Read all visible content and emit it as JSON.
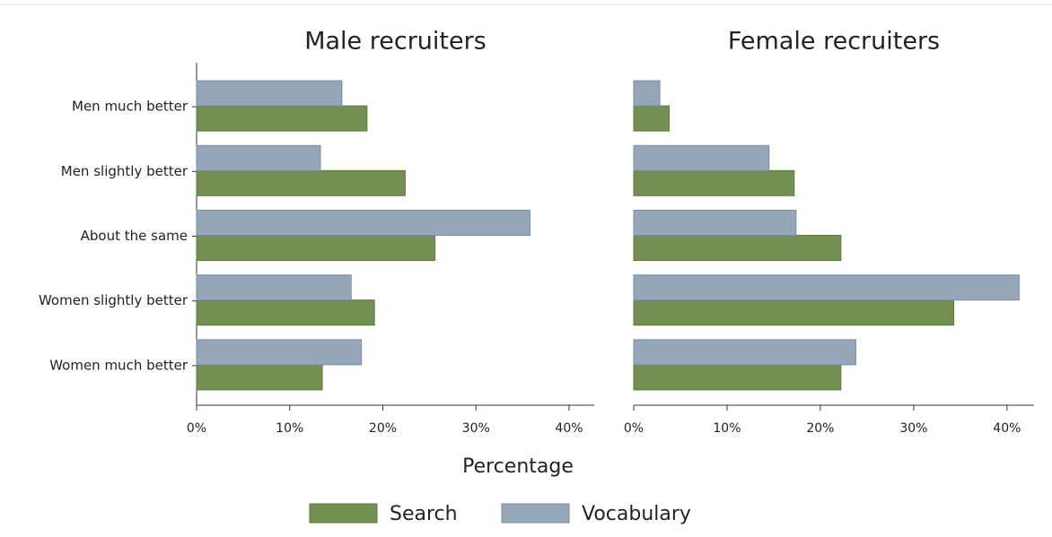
{
  "chart_data": [
    {
      "type": "bar",
      "orientation": "horizontal",
      "title": "Male recruiters",
      "categories": [
        "Men much better",
        "Men slightly better",
        "About the same",
        "Women slightly better",
        "Women much better"
      ],
      "series": [
        {
          "name": "Search",
          "color": "#748f52",
          "values": [
            18.3,
            22.4,
            25.6,
            19.1,
            13.5
          ]
        },
        {
          "name": "Vocabulary",
          "color": "#95a6b8",
          "values": [
            15.6,
            13.3,
            35.8,
            16.6,
            17.7
          ]
        }
      ],
      "xlim": [
        0,
        42.7
      ],
      "xticks": [
        {
          "value": 0,
          "label": "0%"
        },
        {
          "value": 10,
          "label": "10%"
        },
        {
          "value": 20,
          "label": "20%"
        },
        {
          "value": 30,
          "label": "30%"
        },
        {
          "value": 40,
          "label": "40%"
        }
      ]
    },
    {
      "type": "bar",
      "orientation": "horizontal",
      "title": "Female recruiters",
      "categories": [
        null,
        null,
        null,
        null,
        null
      ],
      "series": [
        {
          "name": "Search",
          "color": "#748f52",
          "values": [
            3.8,
            17.2,
            22.2,
            34.3,
            22.2
          ]
        },
        {
          "name": "Vocabulary",
          "color": "#95a6b8",
          "values": [
            2.8,
            14.5,
            17.4,
            41.3,
            23.8
          ]
        }
      ],
      "xlim": [
        0,
        42.9
      ],
      "xticks": [
        {
          "value": 0,
          "label": "0%"
        },
        {
          "value": 10,
          "label": "10%"
        },
        {
          "value": 20,
          "label": "20%"
        },
        {
          "value": 30,
          "label": "30%"
        },
        {
          "value": 40,
          "label": "40%"
        }
      ]
    }
  ],
  "xlabel": "Percentage"
}
